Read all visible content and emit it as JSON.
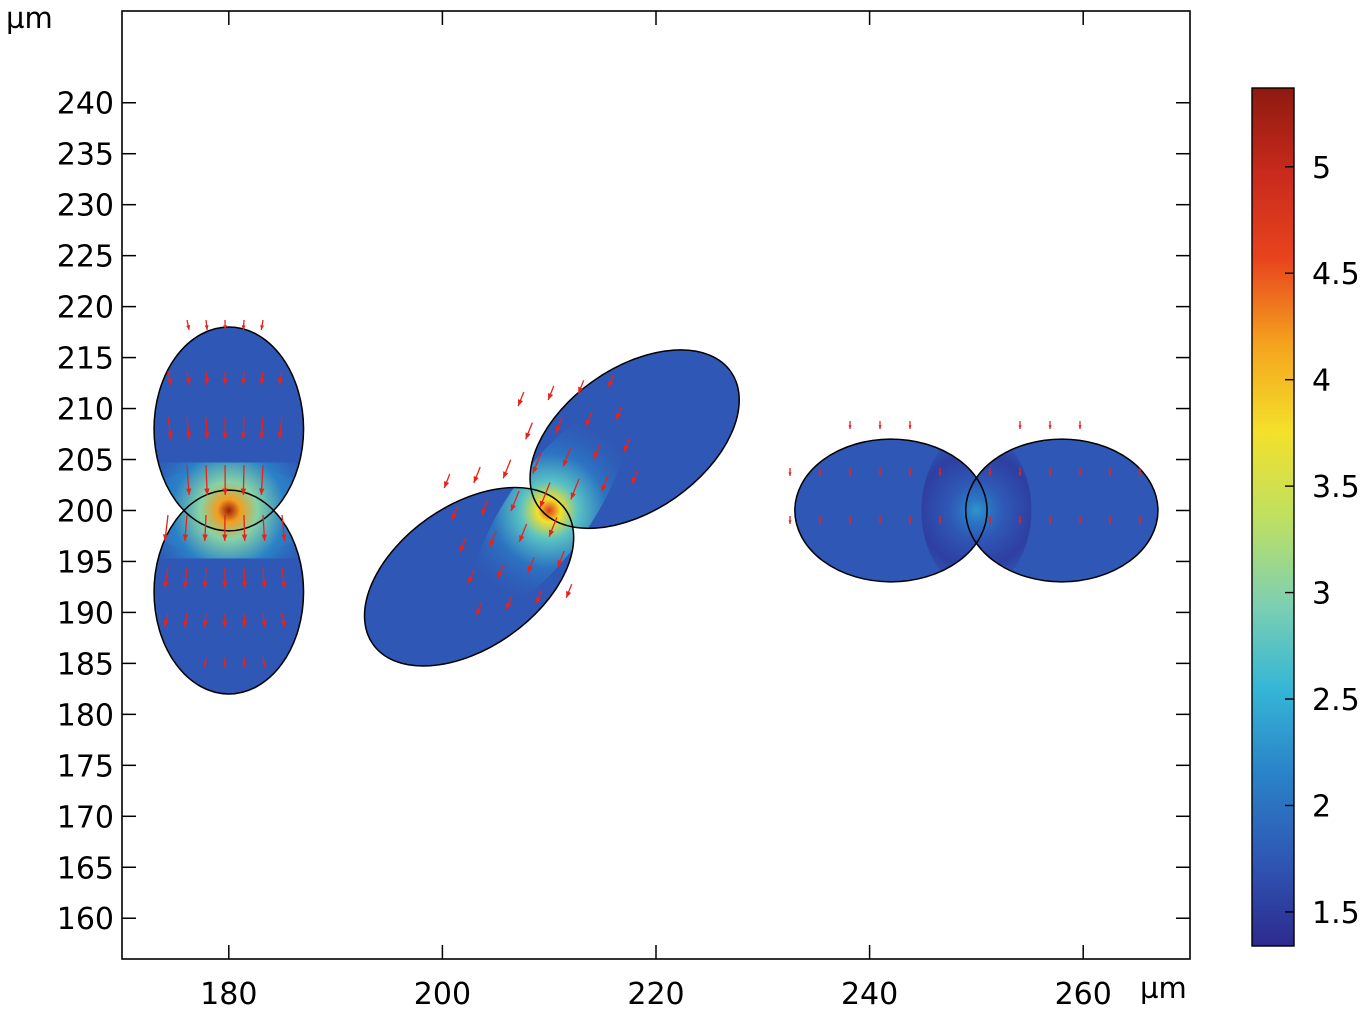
{
  "chart_data": {
    "type": "heatmap",
    "title": "",
    "xlabel": "",
    "ylabel": "",
    "x_unit": "µm",
    "y_unit": "µm",
    "xlim": [
      170,
      270
    ],
    "ylim": [
      156,
      249
    ],
    "x_ticks": [
      180,
      200,
      220,
      240,
      260
    ],
    "y_ticks": [
      160,
      165,
      170,
      175,
      180,
      185,
      190,
      195,
      200,
      205,
      210,
      215,
      220,
      225,
      230,
      235,
      240
    ],
    "grid": false,
    "colorbar": {
      "min": 1.34,
      "max": 5.37,
      "ticks": [
        "1.5",
        "2",
        "2.5",
        "3",
        "3.5",
        "4",
        "4.5",
        "5"
      ],
      "tick_values": [
        1.5,
        2,
        2.5,
        3,
        3.5,
        4,
        4.5,
        5
      ],
      "colormap": [
        "#2e2a8e",
        "#2f57b5",
        "#2a82c8",
        "#35b6d6",
        "#7fd0b0",
        "#bfe060",
        "#f4e02a",
        "#f5a41e",
        "#e8441e",
        "#c92a1c",
        "#8e1a10"
      ]
    },
    "shapes": [
      {
        "name": "vertical-doublet",
        "center": [
          180,
          200
        ],
        "lobes": [
          {
            "center": [
              180,
              208
            ],
            "semi_axis_x": 7,
            "semi_axis_y": 10
          },
          {
            "center": [
              180,
              192
            ],
            "semi_axis_x": 7,
            "semi_axis_y": 10
          }
        ],
        "peak_value": 5.3
      },
      {
        "name": "tilted-doublet",
        "center": [
          210,
          200
        ],
        "lobes": [
          {
            "center": [
              218,
              207
            ],
            "semi_axis_x": 11,
            "semi_axis_y": 7,
            "rotation_deg": 35
          },
          {
            "center": [
              202.5,
              193.5
            ],
            "semi_axis_x": 11,
            "semi_axis_y": 7,
            "rotation_deg": 35
          }
        ],
        "peak_value": 4.7
      },
      {
        "name": "horizontal-doublet",
        "center": [
          250,
          200
        ],
        "lobes": [
          {
            "center": [
              242,
              200
            ],
            "semi_axis_x": 9,
            "semi_axis_y": 7
          },
          {
            "center": [
              258,
              200
            ],
            "semi_axis_x": 9,
            "semi_axis_y": 7
          }
        ],
        "peak_value": 2.3
      }
    ],
    "arrows": {
      "color": "#e8221a",
      "field": "displacement"
    }
  }
}
